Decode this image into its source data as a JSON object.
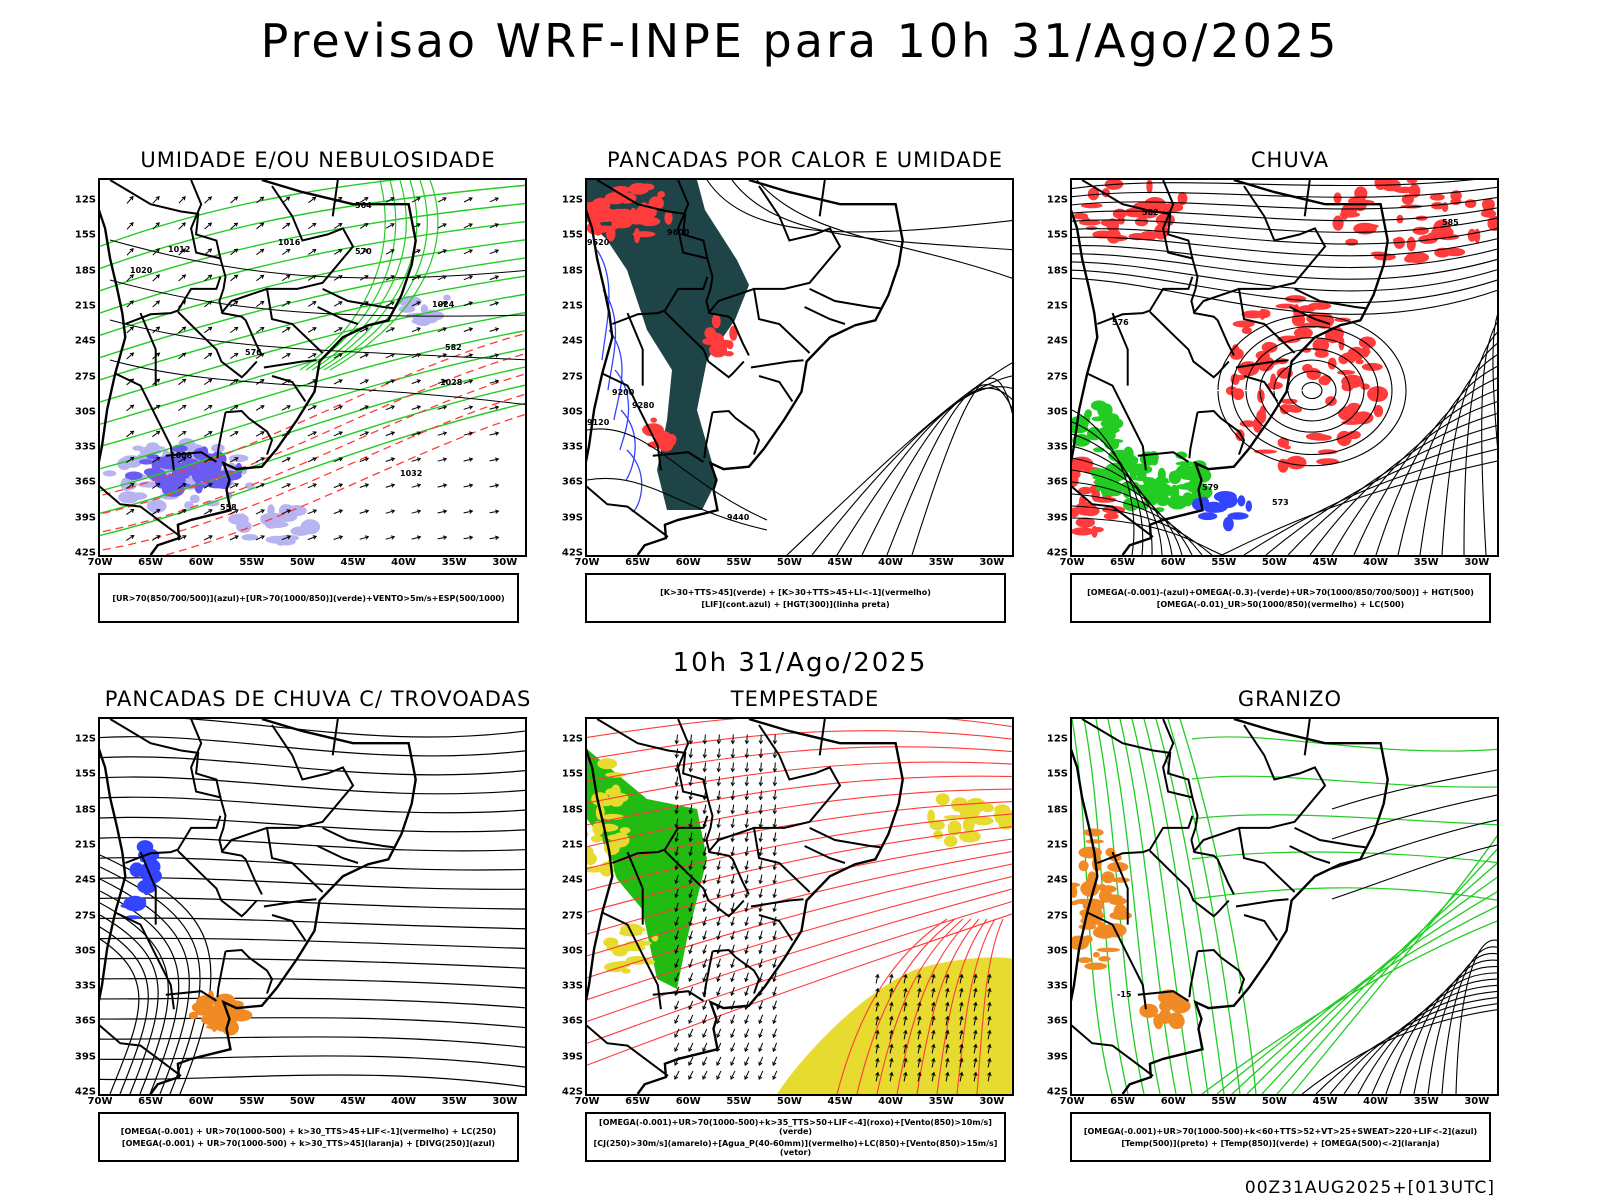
{
  "title": "Previsao WRF-INPE  para 10h 31/Ago/2025",
  "mid_title": "10h 31/Ago/2025",
  "footer": "00Z31AUG2025+[013UTC]",
  "axes": {
    "lat_ticks": [
      "12S",
      "15S",
      "18S",
      "21S",
      "24S",
      "27S",
      "30S",
      "33S",
      "36S",
      "39S",
      "42S"
    ],
    "lon_ticks": [
      "70W",
      "65W",
      "60W",
      "55W",
      "50W",
      "45W",
      "40W",
      "35W",
      "30W"
    ]
  },
  "colors": {
    "blue": "#3344ff",
    "green": "#22cc22",
    "red": "#ff3b3b",
    "dark_teal": "#1e4447",
    "orange": "#f08a24",
    "yellow": "#e6db2e",
    "lavender": "#b8b4f2",
    "violet": "#6a5cf0"
  },
  "panels": [
    {
      "title": "UMIDADE E/OU NEBULOSIDADE",
      "legend": [
        "[UR>70(850/700/500)](azul)+[UR>70(1000/850)](verde)+VENTO>5m/s+ESP(500/1000)"
      ],
      "contour_labels": [
        "1012",
        "1016",
        "1020",
        "1024",
        "1028",
        "1032",
        "1008",
        "564",
        "570",
        "576",
        "582",
        "558"
      ]
    },
    {
      "title": "PANCADAS POR CALOR E UMIDADE",
      "legend": [
        "[K>30+TTS>45](verde) + [K>30+TTS>45+LI<-1](vermelho)",
        "[LIF](cont.azul) + [HGT(300)](linha preta)"
      ],
      "contour_labels": [
        "9600",
        "9520",
        "9440",
        "9200",
        "9280",
        "9120"
      ]
    },
    {
      "title": "CHUVA",
      "legend": [
        "[OMEGA(-0.001)-(azul)+OMEGA(-0.3)-(verde)+UR>70(1000/850/700/500)] + HGT(500)",
        "[OMEGA(-0.01)_UR>50(1000/850)(vermelho) + LC(500)"
      ],
      "contour_labels": [
        "585",
        "582",
        "579",
        "576",
        "573"
      ]
    },
    {
      "title": "PANCADAS DE CHUVA C/ TROVOADAS",
      "legend": [
        "[OMEGA(-0.001) + UR>70(1000-500) + k>30_TTS>45+LIF<-1](vermelho) + LC(250)",
        "[OMEGA(-0.001) + UR>70(1000-500) + k>30_TTS>45](laranja) + [DIVG(250)](azul)"
      ],
      "contour_labels": []
    },
    {
      "title": "TEMPESTADE",
      "legend": [
        "[OMEGA(-0.001)+UR>70(1000-500)+k>35_TTS>50+LIF<-4](roxo)+[Vento(850)>10m/s](verde)",
        "[CJ(250)>30m/s](amarelo)+[Agua_P(40-60mm)](vermelho)+LC(850)+[Vento(850)>15m/s](vetor)"
      ],
      "contour_labels": []
    },
    {
      "title": "GRANIZO",
      "legend": [
        "[OMEGA(-0.001)+UR>70(1000-500)+k<60+TTS>52+VT>25+SWEAT>220+LIF<-2](azul)",
        "[Temp(500)](preto) + [Temp(850)](verde) + [OMEGA(500)<-2](laranja)"
      ],
      "contour_labels": [
        "-15"
      ]
    }
  ]
}
